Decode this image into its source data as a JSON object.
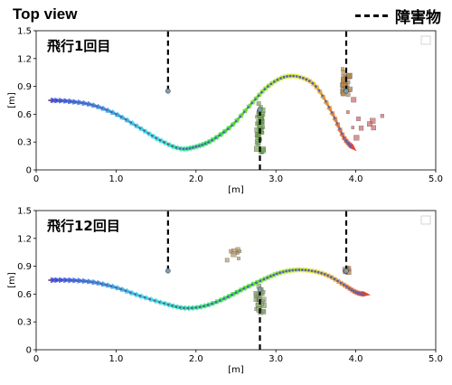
{
  "header": {
    "title": "Top view",
    "legend_label": "障害物"
  },
  "chart_data": [
    {
      "type": "scatter",
      "title": "飛行1回目",
      "xlabel": "[m]",
      "ylabel": "[m]",
      "xlim": [
        0,
        5.0
      ],
      "ylim": [
        0,
        1.5
      ],
      "xticks": [
        "0",
        "1.0",
        "2.0",
        "3.0",
        "4.0",
        "5.0"
      ],
      "yticks": [
        "0",
        "0.3",
        "0.6",
        "0.9",
        "1.2",
        "1.5"
      ],
      "trajectory": {
        "x": [
          0.15,
          0.4,
          0.7,
          1.0,
          1.3,
          1.55,
          1.8,
          2.0,
          2.2,
          2.45,
          2.7,
          2.9,
          3.1,
          3.3,
          3.5,
          3.7,
          3.85,
          3.95
        ],
        "y": [
          0.75,
          0.74,
          0.7,
          0.6,
          0.45,
          0.32,
          0.23,
          0.25,
          0.32,
          0.48,
          0.72,
          0.9,
          1.0,
          1.0,
          0.9,
          0.62,
          0.35,
          0.25
        ]
      },
      "obstacles": [
        {
          "x": 1.65,
          "y_from": 0.85,
          "y_to": 1.5
        },
        {
          "x": 2.8,
          "y_from": 0.0,
          "y_to": 0.65
        },
        {
          "x": 3.88,
          "y_from": 0.85,
          "y_to": 1.5
        }
      ],
      "point_clusters": [
        {
          "x": 2.8,
          "y": 0.45,
          "spread_x": 0.04,
          "spread_y": 0.28,
          "count": 40,
          "color": "#6fa84d"
        },
        {
          "x": 3.88,
          "y": 0.95,
          "spread_x": 0.05,
          "spread_y": 0.15,
          "count": 25,
          "color": "#b8874a"
        },
        {
          "x": 4.1,
          "y": 0.55,
          "spread_x": 0.25,
          "spread_y": 0.25,
          "count": 10,
          "color": "#cc6666"
        }
      ]
    },
    {
      "type": "scatter",
      "title": "飛行12回目",
      "xlabel": "[m]",
      "ylabel": "[m]",
      "xlim": [
        0,
        5.0
      ],
      "ylim": [
        0,
        1.5
      ],
      "xticks": [
        "0",
        "1.0",
        "2.0",
        "3.0",
        "4.0",
        "5.0"
      ],
      "yticks": [
        "0",
        "0.3",
        "0.6",
        "0.9",
        "1.2",
        "1.5"
      ],
      "trajectory": {
        "x": [
          0.15,
          0.4,
          0.7,
          1.0,
          1.3,
          1.6,
          1.85,
          2.1,
          2.35,
          2.6,
          2.85,
          3.05,
          3.25,
          3.45,
          3.65,
          3.85,
          4.0,
          4.1
        ],
        "y": [
          0.75,
          0.75,
          0.73,
          0.67,
          0.58,
          0.5,
          0.45,
          0.47,
          0.55,
          0.66,
          0.76,
          0.83,
          0.86,
          0.85,
          0.8,
          0.7,
          0.62,
          0.6
        ]
      },
      "obstacles": [
        {
          "x": 1.65,
          "y_from": 0.85,
          "y_to": 1.5
        },
        {
          "x": 2.8,
          "y_from": 0.0,
          "y_to": 0.65
        },
        {
          "x": 3.88,
          "y_from": 0.85,
          "y_to": 1.5
        }
      ],
      "point_clusters": [
        {
          "x": 2.8,
          "y": 0.55,
          "spread_x": 0.05,
          "spread_y": 0.15,
          "count": 25,
          "color": "#8aa86a"
        },
        {
          "x": 2.45,
          "y": 1.02,
          "spread_x": 0.1,
          "spread_y": 0.08,
          "count": 8,
          "color": "#b89a6a"
        },
        {
          "x": 3.88,
          "y": 0.85,
          "spread_x": 0.03,
          "spread_y": 0.04,
          "count": 6,
          "color": "#b87040"
        }
      ]
    }
  ]
}
